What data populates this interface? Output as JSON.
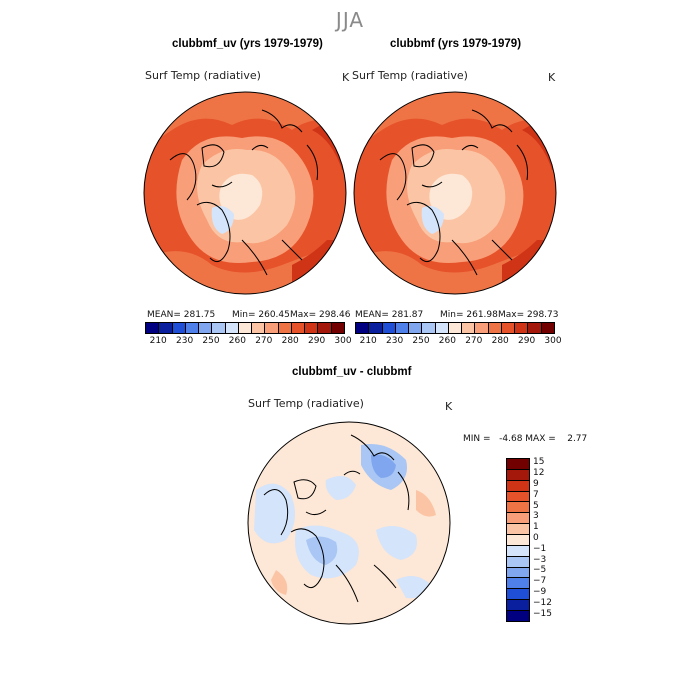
{
  "season": "JJA",
  "colors": {
    "abs_scale": [
      "#000080",
      "#0a1f9e",
      "#1f4fd6",
      "#4f7fe8",
      "#7fa6ef",
      "#a9c6f4",
      "#d4e4fa",
      "#fde7d6",
      "#fbc5a5",
      "#f89e78",
      "#ee7446",
      "#e6522a",
      "#cf3416",
      "#a4180b",
      "#720000"
    ],
    "diff_scale": [
      "#000080",
      "#0a1f9e",
      "#1f4fd6",
      "#4f7fe8",
      "#7fa6ef",
      "#a9c6f4",
      "#d4e4fa",
      "#fde7d6",
      "#fbc5a5",
      "#f89e78",
      "#ee7446",
      "#e6522a",
      "#cf3416",
      "#a4180b",
      "#720000"
    ]
  },
  "chart_data": [
    {
      "type": "heatmap",
      "projection": "north-polar-stereographic",
      "title": "clubbmf_uv (yrs 1979-1979)",
      "variable": "Surf Temp (radiative)",
      "units": "K",
      "stats": {
        "mean": 281.75,
        "min": 260.45,
        "max": 298.46
      },
      "stats_text": {
        "mean": "MEAN= 281.75",
        "min": "Min= 260.45",
        "max": "Max= 298.46"
      },
      "levels": [
        210,
        230,
        250,
        260,
        270,
        280,
        290,
        300
      ],
      "level_labels": [
        "210",
        "230",
        "250",
        "260",
        "270",
        "280",
        "290",
        "300"
      ]
    },
    {
      "type": "heatmap",
      "projection": "north-polar-stereographic",
      "title": "clubbmf (yrs 1979-1979)",
      "variable": "Surf Temp (radiative)",
      "units": "K",
      "stats": {
        "mean": 281.87,
        "min": 261.98,
        "max": 298.73
      },
      "stats_text": {
        "mean": "MEAN= 281.87",
        "min": "Min= 261.98",
        "max": "Max= 298.73"
      },
      "levels": [
        210,
        230,
        250,
        260,
        270,
        280,
        290,
        300
      ],
      "level_labels": [
        "210",
        "230",
        "250",
        "260",
        "270",
        "280",
        "290",
        "300"
      ]
    },
    {
      "type": "heatmap",
      "projection": "north-polar-stereographic",
      "title": "clubbmf_uv - clubbmf",
      "variable": "Surf Temp (radiative)",
      "units": "K",
      "stats": {
        "min": -4.68,
        "max": 2.77
      },
      "stats_text": "MIN =   -4.68 MAX =    2.77",
      "levels": [
        15,
        12,
        9,
        7,
        5,
        3,
        1,
        0,
        -1,
        -3,
        -5,
        -7,
        -9,
        -12,
        -15
      ],
      "level_labels": [
        "15",
        "12",
        "9",
        "7",
        "5",
        "3",
        "1",
        "0",
        "−1",
        "−3",
        "−5",
        "−7",
        "−9",
        "−12",
        "−15"
      ]
    }
  ]
}
